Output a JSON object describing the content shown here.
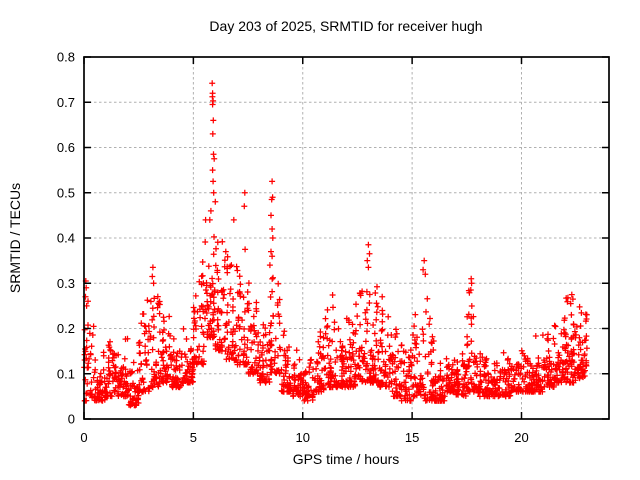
{
  "window": {
    "background": "#ffffff"
  },
  "chart_data": {
    "type": "scatter",
    "title": "Day 203 of 2025, SRMTID for receiver hugh",
    "xlabel": "GPS time / hours",
    "ylabel": "SRMTID / TECUs",
    "xlim": [
      0,
      24
    ],
    "ylim": [
      0,
      0.8
    ],
    "xticks": [
      0,
      5,
      10,
      15,
      20
    ],
    "xtick_labels": [
      "0",
      "5",
      "10",
      "15",
      "20"
    ],
    "yticks": [
      0,
      0.1,
      0.2,
      0.3,
      0.4,
      0.5,
      0.6,
      0.7,
      0.8
    ],
    "ytick_labels": [
      "0",
      "0.1",
      "0.2",
      "0.3",
      "0.4",
      "0.5",
      "0.6",
      "0.7",
      "0.8"
    ],
    "grid": true,
    "legend": "none",
    "marker": "plus",
    "marker_color": "#ff0000",
    "grid_color": "#b0b0b0",
    "border_color": "#000000",
    "text_color": "#000000",
    "data_start_hour": 0.0,
    "data_end_hour": 23.0,
    "bin_width_hours": 0.5,
    "envelope_bins": [
      [
        0.0,
        0.04,
        0.31,
        40
      ],
      [
        0.5,
        0.04,
        0.17,
        45
      ],
      [
        1.0,
        0.05,
        0.2,
        45
      ],
      [
        1.5,
        0.05,
        0.22,
        45
      ],
      [
        2.0,
        0.03,
        0.15,
        45
      ],
      [
        2.5,
        0.06,
        0.28,
        45
      ],
      [
        3.0,
        0.07,
        0.34,
        45
      ],
      [
        3.5,
        0.08,
        0.24,
        45
      ],
      [
        4.0,
        0.07,
        0.2,
        45
      ],
      [
        4.5,
        0.08,
        0.22,
        45
      ],
      [
        5.0,
        0.12,
        0.42,
        50
      ],
      [
        5.5,
        0.18,
        0.48,
        55
      ],
      [
        6.0,
        0.15,
        0.45,
        50
      ],
      [
        6.5,
        0.13,
        0.4,
        45
      ],
      [
        7.0,
        0.12,
        0.45,
        45
      ],
      [
        7.5,
        0.1,
        0.33,
        45
      ],
      [
        8.0,
        0.08,
        0.26,
        45
      ],
      [
        8.5,
        0.1,
        0.42,
        45
      ],
      [
        9.0,
        0.06,
        0.2,
        45
      ],
      [
        9.5,
        0.05,
        0.16,
        40
      ],
      [
        10.0,
        0.04,
        0.14,
        40
      ],
      [
        10.5,
        0.06,
        0.26,
        45
      ],
      [
        11.0,
        0.07,
        0.3,
        45
      ],
      [
        11.5,
        0.07,
        0.25,
        45
      ],
      [
        12.0,
        0.07,
        0.28,
        45
      ],
      [
        12.5,
        0.08,
        0.33,
        45
      ],
      [
        13.0,
        0.08,
        0.38,
        50
      ],
      [
        13.5,
        0.07,
        0.3,
        45
      ],
      [
        14.0,
        0.05,
        0.22,
        40
      ],
      [
        14.5,
        0.04,
        0.18,
        40
      ],
      [
        15.0,
        0.05,
        0.25,
        40
      ],
      [
        15.5,
        0.04,
        0.35,
        45
      ],
      [
        16.0,
        0.04,
        0.16,
        45
      ],
      [
        16.5,
        0.06,
        0.17,
        45
      ],
      [
        17.0,
        0.05,
        0.18,
        45
      ],
      [
        17.5,
        0.06,
        0.31,
        45
      ],
      [
        18.0,
        0.05,
        0.15,
        45
      ],
      [
        18.5,
        0.05,
        0.14,
        40
      ],
      [
        19.0,
        0.05,
        0.16,
        40
      ],
      [
        19.5,
        0.06,
        0.16,
        40
      ],
      [
        20.0,
        0.06,
        0.18,
        45
      ],
      [
        20.5,
        0.06,
        0.2,
        45
      ],
      [
        21.0,
        0.07,
        0.2,
        45
      ],
      [
        21.5,
        0.08,
        0.24,
        50
      ],
      [
        22.0,
        0.08,
        0.28,
        55
      ],
      [
        22.5,
        0.09,
        0.26,
        50
      ]
    ],
    "peak_points": [
      [
        5.86,
        0.742
      ],
      [
        5.88,
        0.72
      ],
      [
        5.87,
        0.712
      ],
      [
        5.9,
        0.703
      ],
      [
        5.88,
        0.695
      ],
      [
        5.91,
        0.66
      ],
      [
        5.89,
        0.63
      ],
      [
        5.92,
        0.585
      ],
      [
        5.95,
        0.575
      ],
      [
        5.88,
        0.55
      ],
      [
        5.9,
        0.525
      ],
      [
        5.93,
        0.5
      ],
      [
        6.0,
        0.48
      ],
      [
        5.8,
        0.46
      ],
      [
        5.75,
        0.44
      ],
      [
        8.6,
        0.525
      ],
      [
        8.62,
        0.49
      ],
      [
        8.58,
        0.485
      ],
      [
        8.55,
        0.45
      ],
      [
        8.6,
        0.42
      ],
      [
        8.63,
        0.4
      ],
      [
        8.55,
        0.37
      ],
      [
        8.5,
        0.34
      ],
      [
        7.35,
        0.5
      ],
      [
        7.33,
        0.47
      ],
      [
        6.85,
        0.44
      ],
      [
        3.15,
        0.335
      ],
      [
        3.12,
        0.315
      ],
      [
        3.18,
        0.3
      ],
      [
        13.0,
        0.385
      ],
      [
        13.05,
        0.365
      ],
      [
        12.95,
        0.35
      ],
      [
        13.0,
        0.335
      ],
      [
        15.55,
        0.35
      ],
      [
        15.5,
        0.33
      ],
      [
        15.6,
        0.32
      ],
      [
        17.7,
        0.31
      ],
      [
        17.72,
        0.3
      ],
      [
        17.68,
        0.285
      ],
      [
        0.08,
        0.305
      ],
      [
        0.1,
        0.29
      ],
      [
        0.07,
        0.27
      ],
      [
        0.12,
        0.25
      ],
      [
        22.3,
        0.275
      ],
      [
        22.35,
        0.265
      ],
      [
        22.25,
        0.255
      ]
    ]
  }
}
